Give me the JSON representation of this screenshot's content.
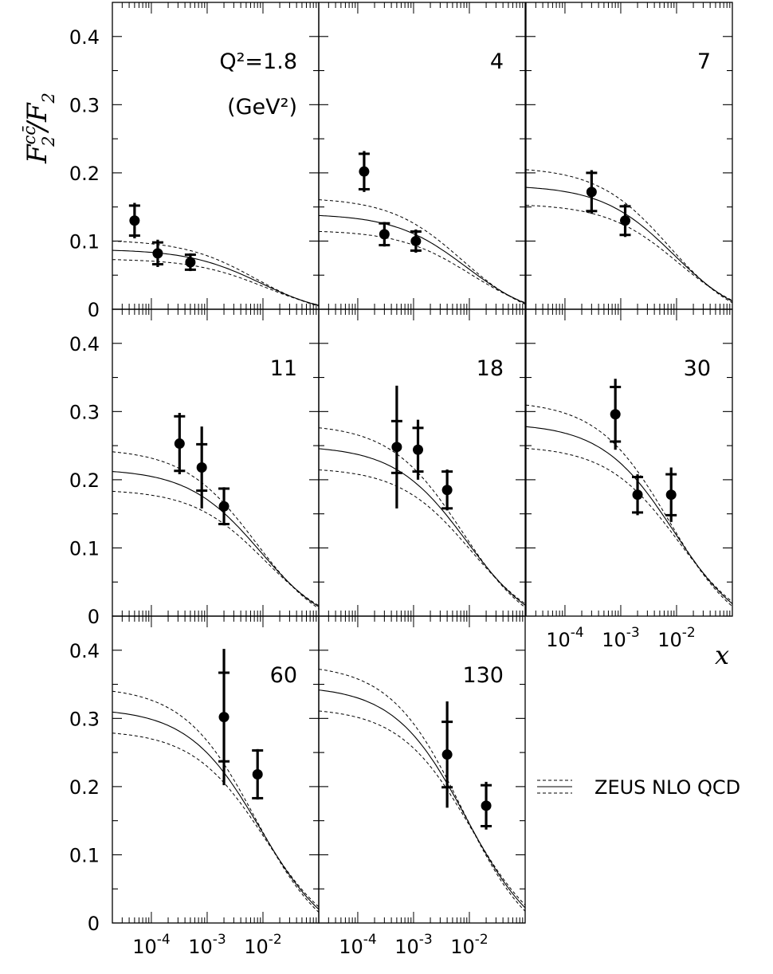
{
  "chart_data": {
    "type": "scatter",
    "y_label": {
      "base": "F",
      "sup": "cc̄",
      "sub": "2",
      "over": "/F",
      "over_sub": "2"
    },
    "x_label": "x",
    "xscale": "log",
    "xlim": [
      2e-05,
      0.1
    ],
    "ylim": [
      0,
      0.45
    ],
    "y_ticks": [
      0,
      0.1,
      0.2,
      0.3,
      0.4
    ],
    "y_tick_labels": [
      "0",
      "0.1",
      "0.2",
      "0.3",
      "0.4"
    ],
    "x_tick_labels": [
      {
        "base": "10",
        "exp": "-4",
        "value": 0.0001
      },
      {
        "base": "10",
        "exp": "-3",
        "value": 0.001
      },
      {
        "base": "10",
        "exp": "-2",
        "value": 0.01
      }
    ],
    "legend": {
      "label": "ZEUS NLO QCD",
      "placement": "right"
    },
    "panels": [
      {
        "q2_label": "Q²=1.8",
        "unit_label": "(GeV²)",
        "points": [
          {
            "x": 5e-05,
            "y": 0.13,
            "stat": 0.022,
            "tot": 0.026
          },
          {
            "x": 0.00013,
            "y": 0.082,
            "stat": 0.016,
            "tot": 0.02
          },
          {
            "x": 0.0005,
            "y": 0.069,
            "stat": 0.011,
            "tot": 0.013
          }
        ],
        "central": 0.088,
        "band": 0.014
      },
      {
        "q2_label": "4",
        "points": [
          {
            "x": 0.00013,
            "y": 0.202,
            "stat": 0.026,
            "tot": 0.03
          },
          {
            "x": 0.0003,
            "y": 0.11,
            "stat": 0.016,
            "tot": 0.018
          },
          {
            "x": 0.0011,
            "y": 0.1,
            "stat": 0.014,
            "tot": 0.017
          }
        ],
        "central": 0.14,
        "band": 0.024
      },
      {
        "q2_label": "7",
        "points": [
          {
            "x": 0.0003,
            "y": 0.172,
            "stat": 0.028,
            "tot": 0.032
          },
          {
            "x": 0.0012,
            "y": 0.13,
            "stat": 0.021,
            "tot": 0.024
          }
        ],
        "central": 0.182,
        "band": 0.027
      },
      {
        "q2_label": "11",
        "points": [
          {
            "x": 0.00032,
            "y": 0.253,
            "stat": 0.04,
            "tot": 0.045
          },
          {
            "x": 0.0008,
            "y": 0.218,
            "stat": 0.034,
            "tot": 0.06
          },
          {
            "x": 0.002,
            "y": 0.161,
            "stat": 0.026,
            "tot": 0.028
          }
        ],
        "central": 0.216,
        "band": 0.03
      },
      {
        "q2_label": "18",
        "points": [
          {
            "x": 0.0005,
            "y": 0.248,
            "stat": 0.038,
            "tot": 0.09
          },
          {
            "x": 0.0012,
            "y": 0.244,
            "stat": 0.032,
            "tot": 0.044
          },
          {
            "x": 0.004,
            "y": 0.185,
            "stat": 0.027,
            "tot": 0.03
          }
        ],
        "central": 0.25,
        "band": 0.032
      },
      {
        "q2_label": "30",
        "points": [
          {
            "x": 0.0008,
            "y": 0.296,
            "stat": 0.04,
            "tot": 0.052
          },
          {
            "x": 0.002,
            "y": 0.178,
            "stat": 0.026,
            "tot": 0.03
          },
          {
            "x": 0.008,
            "y": 0.178,
            "stat": 0.03,
            "tot": 0.04
          }
        ],
        "central": 0.283,
        "band": 0.033
      },
      {
        "q2_label": "60",
        "points": [
          {
            "x": 0.002,
            "y": 0.302,
            "stat": 0.065,
            "tot": 0.1
          },
          {
            "x": 0.008,
            "y": 0.218,
            "stat": 0.035,
            "tot": 0.037
          }
        ],
        "central": 0.315,
        "band": 0.032
      },
      {
        "q2_label": "130",
        "points": [
          {
            "x": 0.004,
            "y": 0.247,
            "stat": 0.048,
            "tot": 0.078
          },
          {
            "x": 0.02,
            "y": 0.172,
            "stat": 0.03,
            "tot": 0.035
          }
        ],
        "central": 0.348,
        "band": 0.032
      }
    ]
  }
}
